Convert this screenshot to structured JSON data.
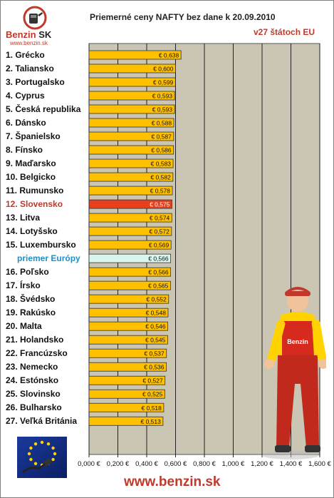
{
  "logo": {
    "name_main": "Benzin",
    "name_suffix": "SK",
    "url": "www.benzin.sk"
  },
  "header": {
    "title": "Priemerné ceny NAFTY bez dane k 20.09.2010",
    "subtitle": "v27 štátoch EU"
  },
  "footer": {
    "url": "www.benzin.sk"
  },
  "colors": {
    "bar": "#ffc000",
    "highlight": "#e8401c",
    "average": "#d9f5ee",
    "plot_bg": "#cbc6b3",
    "accent_text": "#c0392b",
    "average_text": "#1e90c8"
  },
  "chart_data": {
    "type": "bar",
    "orientation": "horizontal",
    "title": "Priemerné ceny NAFTY bez dane k 20.09.2010",
    "subtitle": "v27 štátoch EU",
    "xlim": [
      0,
      1.6
    ],
    "x_ticks": [
      "0,000 €",
      "0,200 €",
      "0,400 €",
      "0,600 €",
      "0,800 €",
      "1,000 €",
      "1,200 €",
      "1,400 €",
      "1,600 €"
    ],
    "grid": true,
    "categories": [
      "1. Grécko",
      "2. Taliansko",
      "3. Portugalsko",
      "4. Cyprus",
      "5. Česká republika",
      "6. Dánsko",
      "7. Španielsko",
      "8. Fínsko",
      "9. Maďarsko",
      "10. Belgicko",
      "11. Rumunsko",
      "12. Slovensko",
      "13. Litva",
      "14. Lotyšsko",
      "15. Luxembursko",
      "priemer Európy",
      "16. Poľsko",
      "17. Írsko",
      "18. Švédsko",
      "19. Rakúsko",
      "20. Malta",
      "21. Holandsko",
      "22. Francúzsko",
      "23. Nemecko",
      "24. Estónsko",
      "25. Slovinsko",
      "26. Bulharsko",
      "27. Veľká Británia"
    ],
    "values": [
      0.638,
      0.6,
      0.599,
      0.593,
      0.593,
      0.588,
      0.587,
      0.586,
      0.583,
      0.582,
      0.578,
      0.575,
      0.574,
      0.572,
      0.569,
      0.566,
      0.566,
      0.565,
      0.552,
      0.548,
      0.546,
      0.545,
      0.537,
      0.536,
      0.527,
      0.525,
      0.518,
      0.513
    ],
    "value_labels": [
      "€ 0,638",
      "€ 0,600",
      "€ 0,599",
      "€ 0,593",
      "€ 0,593",
      "€ 0,588",
      "€ 0,587",
      "€ 0,586",
      "€ 0,583",
      "€ 0,582",
      "€ 0,578",
      "€ 0,575",
      "€ 0,574",
      "€ 0,572",
      "€ 0,569",
      "€ 0,566",
      "€ 0,566",
      "€ 0,565",
      "€ 0,552",
      "€ 0,548",
      "€ 0,546",
      "€ 0,545",
      "€ 0,537",
      "€ 0,536",
      "€ 0,527",
      "€ 0,525",
      "€ 0,518",
      "€ 0,513"
    ],
    "highlight_category": "12. Slovensko",
    "average_category": "priemer Európy"
  }
}
